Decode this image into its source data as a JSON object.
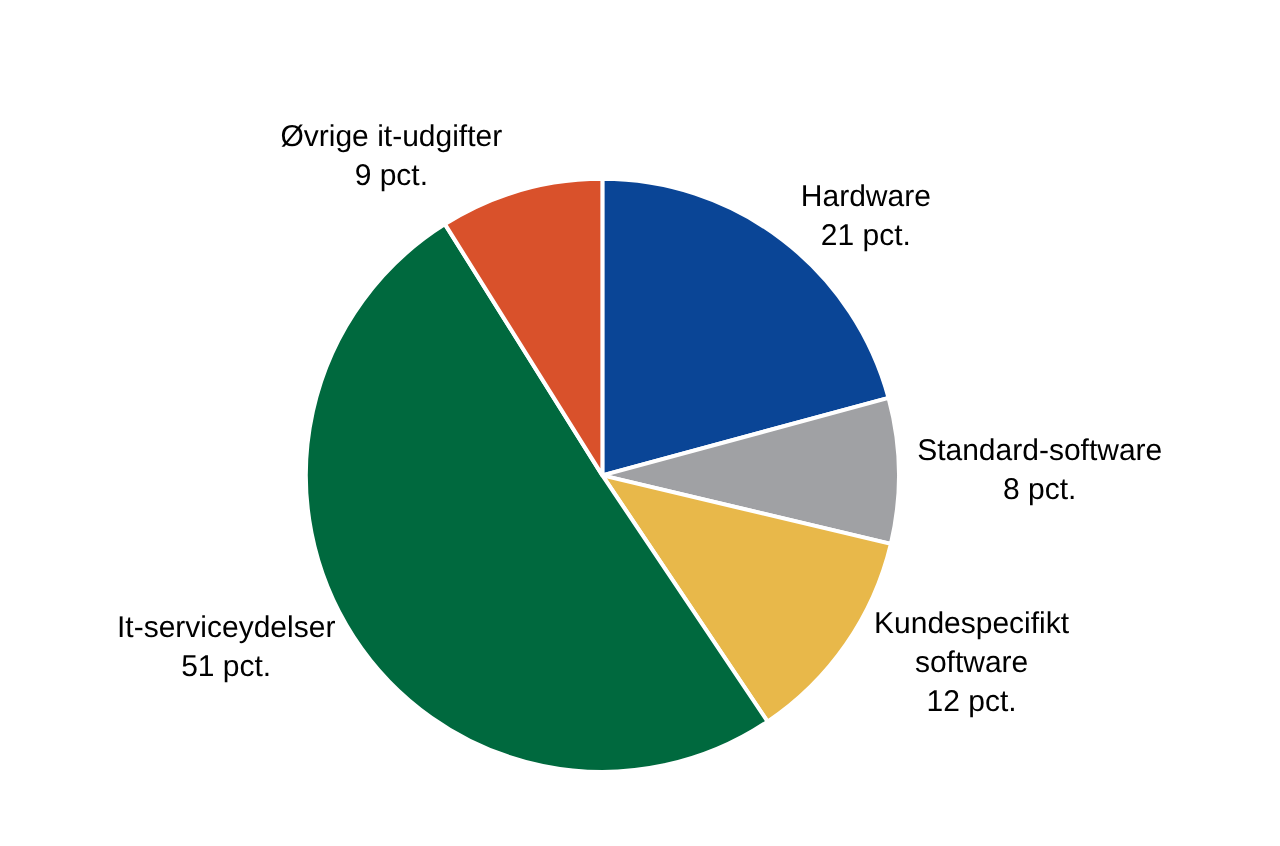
{
  "chart_data": {
    "type": "pie",
    "categories": [
      "Hardware",
      "Standard-software",
      "Kundespecifikt software",
      "It-serviceydelser",
      "Øvrige it-udgifter"
    ],
    "values": [
      21,
      8,
      12,
      51,
      9
    ],
    "value_labels": [
      "21 pct.",
      "8 pct.",
      "12 pct.",
      "51 pct.",
      "9 pct."
    ],
    "colors": [
      "#0a4596",
      "#a0a1a4",
      "#e8b84a",
      "#00693e",
      "#d9512b"
    ],
    "legend": false
  }
}
